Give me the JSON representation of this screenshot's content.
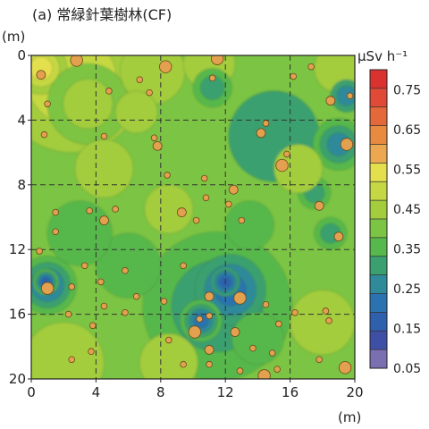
{
  "chart_data": {
    "type": "heatmap",
    "panel_title": "(a) 常緑針葉樹林(CF)",
    "y_unit": "(m)",
    "x_unit": "(m)",
    "colorbar_unit": "µSv h⁻¹",
    "xlim": [
      0,
      20
    ],
    "ylim": [
      0,
      20
    ],
    "x_ticks": [
      0,
      4,
      8,
      12,
      16,
      20
    ],
    "y_ticks": [
      0,
      4,
      8,
      12,
      16,
      20
    ],
    "y_axis_inverted": true,
    "grid": "dashed every 4 m",
    "colorbar_levels": [
      0.05,
      0.1,
      0.15,
      0.2,
      0.25,
      0.3,
      0.35,
      0.4,
      0.45,
      0.5,
      0.55,
      0.6,
      0.65,
      0.7,
      0.75,
      0.8
    ],
    "colorbar_colors": [
      "#7a6fb0",
      "#3e4fa6",
      "#2f60ad",
      "#2a73b0",
      "#2f8a9a",
      "#3aa070",
      "#57b84b",
      "#7cc443",
      "#a3cd3d",
      "#c5d843",
      "#e4e04d",
      "#eba851",
      "#e88a3f",
      "#e4693a",
      "#e04a36",
      "#d9322f"
    ],
    "colorbar_tick_labels": [
      "0.75",
      "0.65",
      "0.55",
      "0.45",
      "0.35",
      "0.25",
      "0.15",
      "0.05"
    ],
    "background_value": 0.4,
    "features": [
      {
        "x": 2.5,
        "y": 1.5,
        "r": 4.5,
        "v": 0.5
      },
      {
        "x": 0.6,
        "y": 0.8,
        "r": 1.6,
        "v": 0.55
      },
      {
        "x": 3.5,
        "y": 3.0,
        "r": 2.5,
        "v": 0.48
      },
      {
        "x": 7.5,
        "y": 1.0,
        "r": 2.0,
        "v": 0.46
      },
      {
        "x": 11.0,
        "y": 0.5,
        "r": 1.6,
        "v": 0.47
      },
      {
        "x": 6.5,
        "y": 3.5,
        "r": 1.3,
        "v": 0.47
      },
      {
        "x": 11.2,
        "y": 2.0,
        "r": 1.2,
        "v": 0.32
      },
      {
        "x": 19.0,
        "y": 0.8,
        "r": 1.5,
        "v": 0.47
      },
      {
        "x": 15.0,
        "y": 5.0,
        "r": 2.8,
        "v": 0.33
      },
      {
        "x": 19.0,
        "y": 5.5,
        "r": 1.6,
        "v": 0.25
      },
      {
        "x": 17.5,
        "y": 8.5,
        "r": 1.0,
        "v": 0.3
      },
      {
        "x": 18.5,
        "y": 11.0,
        "r": 1.0,
        "v": 0.32
      },
      {
        "x": 16.5,
        "y": 7.0,
        "r": 1.5,
        "v": 0.46
      },
      {
        "x": 19.5,
        "y": 2.5,
        "r": 1.0,
        "v": 0.28
      },
      {
        "x": 4.5,
        "y": 7.0,
        "r": 1.8,
        "v": 0.45
      },
      {
        "x": 11.5,
        "y": 15.5,
        "r": 4.6,
        "v": 0.31
      },
      {
        "x": 12.3,
        "y": 14.5,
        "r": 2.2,
        "v": 0.24
      },
      {
        "x": 10.5,
        "y": 16.4,
        "r": 1.3,
        "v": 0.2
      },
      {
        "x": 12.0,
        "y": 14.0,
        "r": 0.9,
        "v": 0.18
      },
      {
        "x": 1.0,
        "y": 14.2,
        "r": 1.8,
        "v": 0.22
      },
      {
        "x": 0.9,
        "y": 14.0,
        "r": 0.8,
        "v": 0.16
      },
      {
        "x": 6.0,
        "y": 13.0,
        "r": 2.0,
        "v": 0.36
      },
      {
        "x": 2.0,
        "y": 19.0,
        "r": 2.5,
        "v": 0.46
      },
      {
        "x": 8.5,
        "y": 19.0,
        "r": 1.8,
        "v": 0.45
      },
      {
        "x": 18.0,
        "y": 16.5,
        "r": 2.0,
        "v": 0.46
      },
      {
        "x": 14.0,
        "y": 17.5,
        "r": 1.6,
        "v": 0.37
      },
      {
        "x": 8.5,
        "y": 9.5,
        "r": 1.5,
        "v": 0.45
      },
      {
        "x": 13.5,
        "y": 10.5,
        "r": 1.5,
        "v": 0.37
      },
      {
        "x": 3.0,
        "y": 11.0,
        "r": 2.0,
        "v": 0.37
      }
    ],
    "sample_points": [
      {
        "x": 0.6,
        "y": 1.2,
        "size": "medium"
      },
      {
        "x": 2.8,
        "y": 0.3,
        "size": "large"
      },
      {
        "x": 8.3,
        "y": 0.7,
        "size": "large"
      },
      {
        "x": 11.5,
        "y": 0.2,
        "size": "large"
      },
      {
        "x": 6.7,
        "y": 1.5,
        "size": "small"
      },
      {
        "x": 11.2,
        "y": 1.4,
        "size": "small"
      },
      {
        "x": 16.2,
        "y": 1.3,
        "size": "small"
      },
      {
        "x": 17.3,
        "y": 0.7,
        "size": "small"
      },
      {
        "x": 7.3,
        "y": 2.3,
        "size": "small"
      },
      {
        "x": 4.8,
        "y": 2.2,
        "size": "small"
      },
      {
        "x": 1.0,
        "y": 3.0,
        "size": "small"
      },
      {
        "x": 18.5,
        "y": 2.8,
        "size": "medium"
      },
      {
        "x": 19.7,
        "y": 2.5,
        "size": "small"
      },
      {
        "x": 14.2,
        "y": 4.8,
        "size": "medium"
      },
      {
        "x": 14.5,
        "y": 4.2,
        "size": "small"
      },
      {
        "x": 0.8,
        "y": 4.9,
        "size": "small"
      },
      {
        "x": 4.5,
        "y": 5.0,
        "size": "small"
      },
      {
        "x": 7.6,
        "y": 5.1,
        "size": "small"
      },
      {
        "x": 7.8,
        "y": 5.6,
        "size": "medium"
      },
      {
        "x": 19.5,
        "y": 5.5,
        "size": "large"
      },
      {
        "x": 15.8,
        "y": 6.1,
        "size": "small"
      },
      {
        "x": 15.5,
        "y": 6.8,
        "size": "large"
      },
      {
        "x": 8.4,
        "y": 7.4,
        "size": "small"
      },
      {
        "x": 10.7,
        "y": 7.6,
        "size": "small"
      },
      {
        "x": 12.5,
        "y": 8.3,
        "size": "medium"
      },
      {
        "x": 10.8,
        "y": 8.8,
        "size": "small"
      },
      {
        "x": 9.3,
        "y": 9.7,
        "size": "medium"
      },
      {
        "x": 3.6,
        "y": 9.6,
        "size": "small"
      },
      {
        "x": 1.5,
        "y": 9.7,
        "size": "small"
      },
      {
        "x": 5.2,
        "y": 9.5,
        "size": "small"
      },
      {
        "x": 12.2,
        "y": 9.2,
        "size": "small"
      },
      {
        "x": 17.8,
        "y": 9.3,
        "size": "medium"
      },
      {
        "x": 4.5,
        "y": 10.2,
        "size": "medium"
      },
      {
        "x": 10.2,
        "y": 10.2,
        "size": "small"
      },
      {
        "x": 13.0,
        "y": 10.2,
        "size": "small"
      },
      {
        "x": 1.5,
        "y": 10.9,
        "size": "small"
      },
      {
        "x": 19.0,
        "y": 11.2,
        "size": "medium"
      },
      {
        "x": 0.5,
        "y": 12.1,
        "size": "small"
      },
      {
        "x": 3.3,
        "y": 13.0,
        "size": "small"
      },
      {
        "x": 5.8,
        "y": 13.3,
        "size": "small"
      },
      {
        "x": 9.4,
        "y": 13.0,
        "size": "small"
      },
      {
        "x": 2.5,
        "y": 14.3,
        "size": "small"
      },
      {
        "x": 4.3,
        "y": 14.0,
        "size": "small"
      },
      {
        "x": 1.0,
        "y": 14.4,
        "size": "large"
      },
      {
        "x": 6.5,
        "y": 14.9,
        "size": "small"
      },
      {
        "x": 11.0,
        "y": 14.9,
        "size": "medium"
      },
      {
        "x": 12.9,
        "y": 15.0,
        "size": "large"
      },
      {
        "x": 14.5,
        "y": 15.4,
        "size": "small"
      },
      {
        "x": 4.5,
        "y": 15.5,
        "size": "small"
      },
      {
        "x": 5.8,
        "y": 15.9,
        "size": "small"
      },
      {
        "x": 8.2,
        "y": 15.2,
        "size": "small"
      },
      {
        "x": 10.4,
        "y": 16.3,
        "size": "small"
      },
      {
        "x": 11.0,
        "y": 16.1,
        "size": "small"
      },
      {
        "x": 2.3,
        "y": 16.0,
        "size": "small"
      },
      {
        "x": 18.2,
        "y": 15.8,
        "size": "small"
      },
      {
        "x": 18.4,
        "y": 16.4,
        "size": "small"
      },
      {
        "x": 16.3,
        "y": 15.9,
        "size": "small"
      },
      {
        "x": 3.8,
        "y": 16.7,
        "size": "small"
      },
      {
        "x": 10.1,
        "y": 17.1,
        "size": "large"
      },
      {
        "x": 12.6,
        "y": 17.1,
        "size": "medium"
      },
      {
        "x": 15.3,
        "y": 16.6,
        "size": "small"
      },
      {
        "x": 8.5,
        "y": 17.6,
        "size": "small"
      },
      {
        "x": 3.7,
        "y": 18.3,
        "size": "small"
      },
      {
        "x": 11.0,
        "y": 18.2,
        "size": "medium"
      },
      {
        "x": 14.9,
        "y": 18.4,
        "size": "small"
      },
      {
        "x": 13.7,
        "y": 18.1,
        "size": "small"
      },
      {
        "x": 9.4,
        "y": 19.1,
        "size": "small"
      },
      {
        "x": 11.0,
        "y": 19.1,
        "size": "small"
      },
      {
        "x": 12.9,
        "y": 19.5,
        "size": "small"
      },
      {
        "x": 2.5,
        "y": 18.8,
        "size": "small"
      },
      {
        "x": 15.2,
        "y": 19.4,
        "size": "small"
      },
      {
        "x": 19.4,
        "y": 19.3,
        "size": "large"
      },
      {
        "x": 14.4,
        "y": 19.8,
        "size": "large"
      },
      {
        "x": 17.8,
        "y": 18.8,
        "size": "small"
      },
      {
        "x": 2.0,
        "y": 20.2,
        "size": "small"
      }
    ]
  }
}
